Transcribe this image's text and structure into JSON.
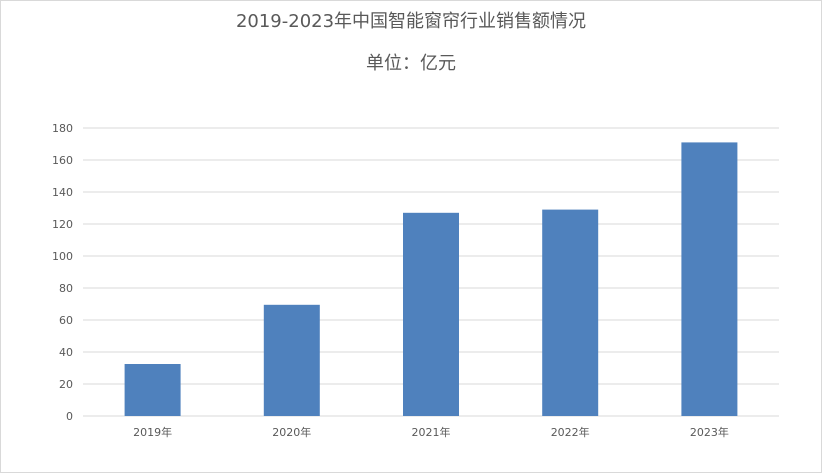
{
  "chart_data": {
    "type": "bar",
    "title": "2019-2023年中国智能窗帘行业销售额情况",
    "subtitle": "单位：亿元",
    "categories": [
      "2019年",
      "2020年",
      "2021年",
      "2022年",
      "2023年"
    ],
    "values": [
      32.5,
      69.5,
      127.0,
      129.0,
      171.0
    ],
    "ylim": [
      0,
      180
    ],
    "yticks": [
      0,
      20,
      40,
      60,
      80,
      100,
      120,
      140,
      160,
      180
    ],
    "grid": true,
    "legend": "none",
    "bar_color": "#4f81bd",
    "grid_color": "#d9d9d9"
  }
}
